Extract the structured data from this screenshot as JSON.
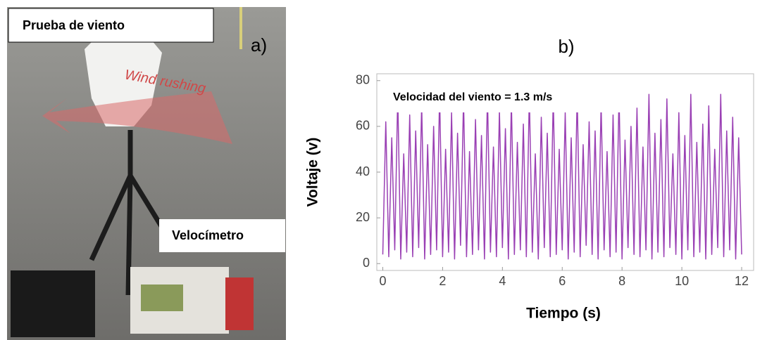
{
  "panel_a": {
    "title": "Prueba de viento",
    "label": "a)",
    "arrow_text": "Wind rushing",
    "device_label": "Velocímetro"
  },
  "chart_data": {
    "type": "line",
    "panel_label": "b)",
    "annotation": "Velocidad del viento = 1.3 m/s",
    "xlabel": "Tiempo (s)",
    "ylabel": "Voltaje (v)",
    "xlim": [
      -0.2,
      12.4
    ],
    "ylim": [
      -3,
      83
    ],
    "xticks": [
      0,
      2,
      4,
      6,
      8,
      10,
      12
    ],
    "yticks": [
      0,
      20,
      40,
      60,
      80
    ],
    "grid": false,
    "x": [
      0,
      0.1,
      0.2,
      0.3,
      0.4,
      0.5,
      0.6,
      0.7,
      0.8,
      0.9,
      1,
      1.1,
      1.2,
      1.3,
      1.4,
      1.5,
      1.6,
      1.7,
      1.8,
      1.9,
      2,
      2.1,
      2.2,
      2.3,
      2.4,
      2.5,
      2.6,
      2.7,
      2.8,
      2.9,
      3,
      3.1,
      3.2,
      3.3,
      3.4,
      3.5,
      3.6,
      3.7,
      3.8,
      3.9,
      4,
      4.1,
      4.2,
      4.3,
      4.4,
      4.5,
      4.6,
      4.7,
      4.8,
      4.9,
      5,
      5.1,
      5.2,
      5.3,
      5.4,
      5.5,
      5.6,
      5.7,
      5.8,
      5.9,
      6,
      6.1,
      6.2,
      6.3,
      6.4,
      6.5,
      6.6,
      6.7,
      6.8,
      6.9,
      7,
      7.1,
      7.2,
      7.3,
      7.4,
      7.5,
      7.6,
      7.7,
      7.8,
      7.9,
      8,
      8.1,
      8.2,
      8.3,
      8.4,
      8.5,
      8.6,
      8.7,
      8.8,
      8.9,
      9,
      9.1,
      9.2,
      9.3,
      9.4,
      9.5,
      9.6,
      9.7,
      9.8,
      9.9,
      10,
      10.1,
      10.2,
      10.3,
      10.4,
      10.5,
      10.6,
      10.7,
      10.8,
      10.9,
      11,
      11.1,
      11.2,
      11.3,
      11.4,
      11.5,
      11.6,
      11.7,
      11.8,
      11.9,
      12
    ],
    "series": [
      {
        "color": "#9a40b4",
        "values": [
          4,
          62,
          3,
          55,
          6,
          74,
          2,
          48,
          5,
          65,
          3,
          58,
          7,
          70,
          2,
          52,
          4,
          60,
          6,
          74,
          3,
          50,
          5,
          66,
          2,
          57,
          8,
          72,
          3,
          49,
          4,
          63,
          6,
          56,
          2,
          74,
          5,
          51,
          3,
          67,
          7,
          59,
          2,
          71,
          4,
          53,
          6,
          61,
          3,
          74,
          5,
          48,
          2,
          64,
          7,
          57,
          3,
          73,
          4,
          50,
          6,
          66,
          2,
          55,
          5,
          74,
          3,
          52,
          8,
          62,
          4,
          58,
          2,
          70,
          6,
          49,
          3,
          65,
          5,
          74,
          2,
          54,
          7,
          60,
          4,
          68,
          3,
          51,
          6,
          74,
          2,
          57,
          5,
          63,
          3,
          72,
          7,
          48,
          4,
          66,
          2,
          56,
          6,
          74,
          3,
          53,
          5,
          61,
          2,
          69,
          4,
          50,
          7,
          74,
          3,
          58,
          6,
          64,
          2,
          55,
          4
        ]
      }
    ]
  }
}
